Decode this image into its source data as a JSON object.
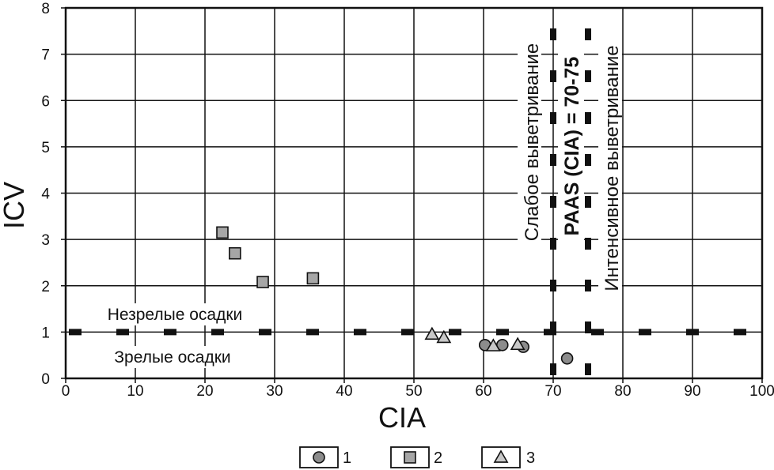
{
  "chart_data": {
    "type": "scatter",
    "xlabel": "CIA",
    "ylabel": "ICV",
    "xlim": [
      0,
      100
    ],
    "ylim": [
      0,
      8
    ],
    "x_ticks": [
      "0",
      "10",
      "20",
      "30",
      "40",
      "50",
      "60",
      "70",
      "80",
      "90",
      "100"
    ],
    "y_ticks": [
      "0",
      "1",
      "2",
      "3",
      "4",
      "5",
      "6",
      "7",
      "8"
    ],
    "grid": true,
    "series": [
      {
        "name": "1",
        "marker": "circle",
        "color": "#8c8c8c",
        "points": [
          {
            "x": 60.2,
            "y": 0.72
          },
          {
            "x": 62.7,
            "y": 0.72
          },
          {
            "x": 65.7,
            "y": 0.68
          },
          {
            "x": 72.0,
            "y": 0.43
          }
        ]
      },
      {
        "name": "2",
        "marker": "square",
        "color": "#a6a6a6",
        "points": [
          {
            "x": 22.5,
            "y": 3.15
          },
          {
            "x": 24.3,
            "y": 2.7
          },
          {
            "x": 28.3,
            "y": 2.08
          },
          {
            "x": 35.5,
            "y": 2.16
          }
        ]
      },
      {
        "name": "3",
        "marker": "triangle",
        "color": "#c8c8c8",
        "points": [
          {
            "x": 52.6,
            "y": 0.95
          },
          {
            "x": 54.3,
            "y": 0.88
          },
          {
            "x": 61.4,
            "y": 0.7
          },
          {
            "x": 64.9,
            "y": 0.73
          }
        ]
      }
    ],
    "reference_lines": {
      "horizontal": {
        "y": 1,
        "style": "dashed"
      },
      "vertical": [
        {
          "x": 70,
          "style": "dashed"
        },
        {
          "x": 75,
          "style": "dashed"
        }
      ]
    },
    "annotations": {
      "immature": "Незрелые осадки",
      "mature": "Зрелые осадки",
      "weak_weathering": "Слабое выветривание",
      "paas": "PAAS (CIA) = 70-75",
      "intense_weathering": "Интенсивное выветривание"
    },
    "legend": {
      "placement": "bottom-center",
      "entries": [
        "1",
        "2",
        "3"
      ]
    }
  }
}
